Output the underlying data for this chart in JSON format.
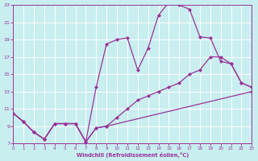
{
  "background_color": "#c8eef0",
  "grid_color": "#c0dde0",
  "line_color": "#993399",
  "xlim": [
    0,
    23
  ],
  "ylim": [
    7,
    23
  ],
  "xticks": [
    0,
    1,
    2,
    3,
    4,
    5,
    6,
    7,
    8,
    9,
    10,
    11,
    12,
    13,
    14,
    15,
    16,
    17,
    18,
    19,
    20,
    21,
    22,
    23
  ],
  "yticks": [
    7,
    9,
    11,
    13,
    15,
    17,
    19,
    21,
    23
  ],
  "xlabel": "Windchill (Refroidissement éolien,°C)",
  "line_top_x": [
    0,
    1,
    2,
    3,
    4,
    5,
    6,
    7,
    8,
    9,
    10,
    11,
    12,
    13,
    14,
    15,
    16,
    17,
    18,
    19,
    20,
    21,
    22,
    23
  ],
  "line_top_y": [
    10.5,
    9.5,
    8.3,
    7.5,
    9.3,
    9.3,
    9.3,
    7.2,
    13.5,
    18.5,
    19.0,
    19.2,
    15.5,
    18.0,
    21.8,
    23.3,
    23.0,
    22.5,
    19.3,
    19.2,
    16.5,
    16.2,
    14.0,
    13.5
  ],
  "line_mid_x": [
    0,
    1,
    2,
    3,
    4,
    5,
    6,
    7,
    8,
    9,
    10,
    11,
    12,
    13,
    14,
    15,
    16,
    17,
    18,
    19,
    20,
    21,
    22,
    23
  ],
  "line_mid_y": [
    10.5,
    9.5,
    8.3,
    7.5,
    9.3,
    9.3,
    9.3,
    7.2,
    8.8,
    9.0,
    10.0,
    11.0,
    12.0,
    12.5,
    13.0,
    13.5,
    14.0,
    15.0,
    15.5,
    17.0,
    17.0,
    16.2,
    14.0,
    13.5
  ],
  "line_bot_x": [
    0,
    1,
    2,
    3,
    4,
    5,
    6,
    7,
    8,
    9,
    23
  ],
  "line_bot_y": [
    10.5,
    9.5,
    8.3,
    7.5,
    9.3,
    9.3,
    9.3,
    7.2,
    8.8,
    9.0,
    13.0
  ]
}
